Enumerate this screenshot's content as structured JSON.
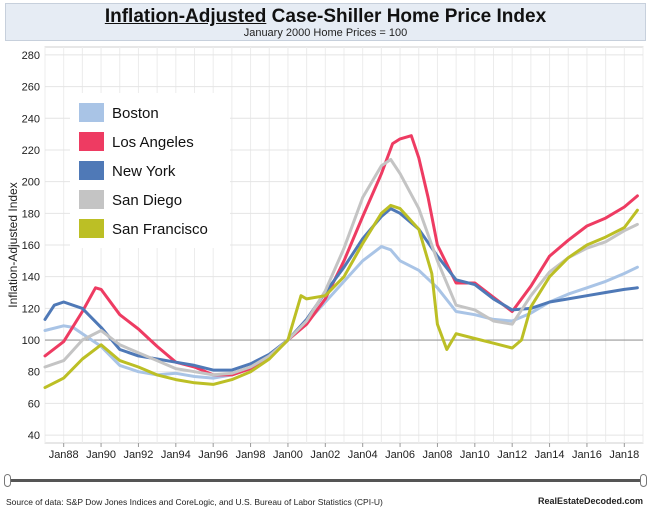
{
  "header": {
    "title_underlined": "Inflation-Adjusted",
    "title_rest": " Case-Shiller Home Price Index",
    "subtitle": "January 2000 Home Prices = 100"
  },
  "footer": {
    "source": "Source of data: S&P Dow Jones Indices and CoreLogic, and U.S. Bureau of Labor Statistics (CPI-U)",
    "brand": "RealEstateDecoded.com"
  },
  "slider": {
    "range": [
      "Jan87",
      "Jan19"
    ]
  },
  "chart_data": {
    "type": "line",
    "title": "Inflation-Adjusted Case-Shiller Home Price Index",
    "subtitle": "January 2000 Home Prices = 100",
    "xlabel": "",
    "ylabel": "Inflation-Adjusted Index",
    "xlim": [
      1987,
      2019
    ],
    "ylim": [
      35,
      285
    ],
    "yticks": [
      40,
      60,
      80,
      100,
      120,
      140,
      160,
      180,
      200,
      220,
      240,
      260,
      280
    ],
    "xticks": [
      {
        "label": "Jan88",
        "x": 1988
      },
      {
        "label": "Jan90",
        "x": 1990
      },
      {
        "label": "Jan92",
        "x": 1992
      },
      {
        "label": "Jan94",
        "x": 1994
      },
      {
        "label": "Jan96",
        "x": 1996
      },
      {
        "label": "Jan98",
        "x": 1998
      },
      {
        "label": "Jan00",
        "x": 2000
      },
      {
        "label": "Jan02",
        "x": 2002
      },
      {
        "label": "Jan04",
        "x": 2004
      },
      {
        "label": "Jan06",
        "x": 2006
      },
      {
        "label": "Jan08",
        "x": 2008
      },
      {
        "label": "Jan10",
        "x": 2010
      },
      {
        "label": "Jan12",
        "x": 2012
      },
      {
        "label": "Jan14",
        "x": 2014
      },
      {
        "label": "Jan16",
        "x": 2016
      },
      {
        "label": "Jan18",
        "x": 2018
      }
    ],
    "reference_line": 100,
    "grid": true,
    "legend_position": "top-left",
    "series": [
      {
        "name": "Boston",
        "color": "#a9c4e6",
        "x": [
          1987,
          1988,
          1988.5,
          1989,
          1990,
          1991,
          1992,
          1993,
          1994,
          1995,
          1996,
          1997,
          1998,
          1999,
          2000,
          2001,
          2002,
          2003,
          2004,
          2005,
          2005.5,
          2006,
          2007,
          2008,
          2009,
          2010,
          2011,
          2012,
          2013,
          2014,
          2015,
          2016,
          2017,
          2018,
          2018.7
        ],
        "y": [
          106,
          109,
          108,
          104,
          96,
          84,
          80,
          78,
          79,
          77,
          76,
          78,
          82,
          89,
          100,
          111,
          124,
          137,
          150,
          159,
          157,
          150,
          144,
          133,
          118,
          116,
          113,
          112,
          117,
          124,
          129,
          133,
          137,
          142,
          146
        ]
      },
      {
        "name": "Los Angeles",
        "color": "#ee3b62",
        "x": [
          1987,
          1988,
          1989,
          1989.7,
          1990,
          1991,
          1992,
          1993,
          1994,
          1995,
          1996,
          1997,
          1998,
          1999,
          2000,
          2001,
          2002,
          2003,
          2004,
          2005,
          2005.6,
          2006,
          2006.6,
          2007,
          2007.5,
          2008,
          2009,
          2010,
          2011,
          2012,
          2013,
          2014,
          2015,
          2016,
          2017,
          2018,
          2018.7
        ],
        "y": [
          90,
          99,
          118,
          133,
          132,
          116,
          107,
          96,
          86,
          83,
          78,
          78,
          82,
          89,
          100,
          110,
          126,
          150,
          178,
          205,
          224,
          227,
          229,
          215,
          190,
          160,
          136,
          136,
          127,
          118,
          134,
          153,
          163,
          172,
          177,
          184,
          191
        ]
      },
      {
        "name": "New York",
        "color": "#4f79b7",
        "x": [
          1987,
          1987.5,
          1988,
          1989,
          1990,
          1991,
          1992,
          1993,
          1994,
          1995,
          1996,
          1997,
          1998,
          1999,
          2000,
          2001,
          2002,
          2003,
          2004,
          2005,
          2005.5,
          2006,
          2007,
          2008,
          2009,
          2010,
          2011,
          2012,
          2013,
          2014,
          2015,
          2016,
          2017,
          2018,
          2018.7
        ],
        "y": [
          113,
          122,
          124,
          120,
          108,
          94,
          90,
          88,
          86,
          84,
          81,
          81,
          85,
          91,
          100,
          113,
          130,
          146,
          164,
          178,
          183,
          180,
          170,
          153,
          138,
          135,
          126,
          119,
          120,
          124,
          126,
          128,
          130,
          132,
          133
        ]
      },
      {
        "name": "San Diego",
        "color": "#c4c4c4",
        "x": [
          1987,
          1988,
          1989,
          1990,
          1991,
          1992,
          1993,
          1994,
          1995,
          1996,
          1997,
          1998,
          1999,
          2000,
          2001,
          2002,
          2003,
          2004,
          2005,
          2005.5,
          2006,
          2007,
          2008,
          2009,
          2010,
          2011,
          2012,
          2013,
          2014,
          2015,
          2016,
          2017,
          2018,
          2018.7
        ],
        "y": [
          83,
          87,
          100,
          106,
          97,
          92,
          87,
          82,
          80,
          78,
          79,
          83,
          90,
          100,
          112,
          131,
          158,
          190,
          210,
          214,
          205,
          183,
          150,
          122,
          119,
          112,
          110,
          128,
          143,
          152,
          158,
          162,
          169,
          173
        ]
      },
      {
        "name": "San Francisco",
        "color": "#bcbf25",
        "x": [
          1987,
          1988,
          1989,
          1990,
          1991,
          1992,
          1993,
          1994,
          1995,
          1996,
          1997,
          1998,
          1999,
          2000,
          2000.7,
          2001,
          2002,
          2003,
          2004,
          2005,
          2005.5,
          2006,
          2007,
          2007.7,
          2008,
          2008.5,
          2009,
          2010,
          2011,
          2012,
          2012.5,
          2013,
          2014,
          2015,
          2016,
          2017,
          2018,
          2018.7
        ],
        "y": [
          70,
          76,
          88,
          97,
          87,
          83,
          78,
          75,
          73,
          72,
          75,
          80,
          88,
          100,
          128,
          126,
          128,
          140,
          161,
          180,
          185,
          183,
          170,
          142,
          110,
          94,
          104,
          101,
          98,
          95,
          100,
          121,
          140,
          152,
          160,
          165,
          171,
          182
        ]
      }
    ]
  }
}
